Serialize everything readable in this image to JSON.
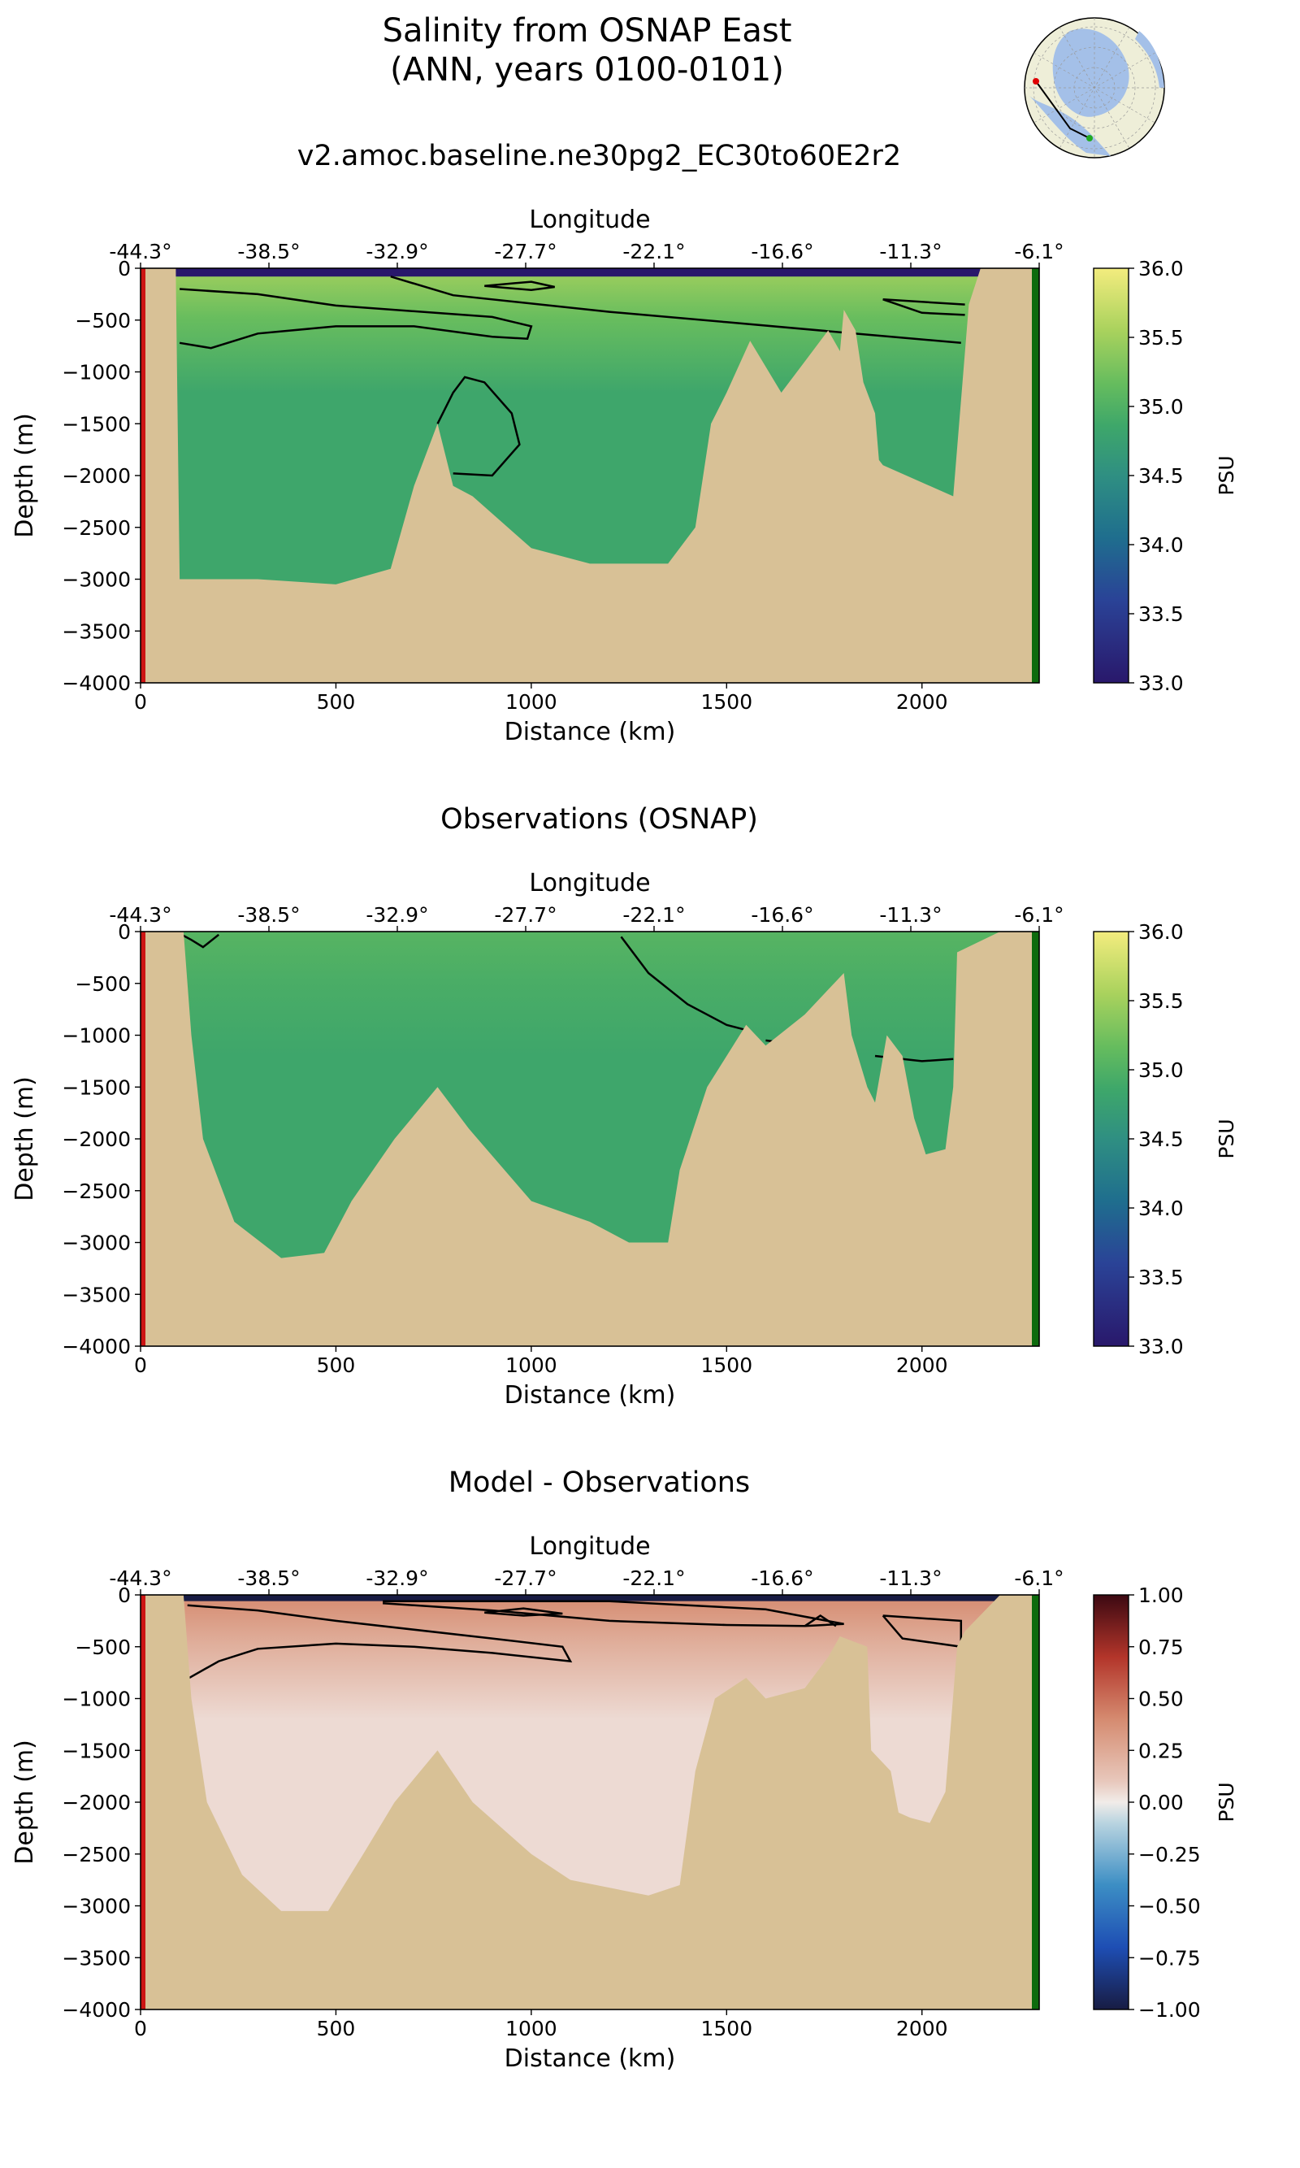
{
  "figure": {
    "title_line1": "Salinity from OSNAP East",
    "title_line2": "(ANN, years 0100-0101)",
    "run_name": "v2.amoc.baseline.ne30pg2_EC30to60E2r2"
  },
  "inset_map": {
    "projection": "north-polar-stereographic",
    "section_start_marker_color": "#e00000",
    "section_end_marker_color": "#22aa22",
    "land_color": "#eeeed8",
    "ocean_color": "#a4c0e8"
  },
  "chart_data": [
    {
      "type": "heatmap",
      "title": "",
      "xlabel": "Distance (km)",
      "ylabel": "Depth (m)",
      "top_axis_label": "Longitude",
      "top_ticks": [
        "-44.3°",
        "-38.5°",
        "-32.9°",
        "-27.7°",
        "-22.1°",
        "-16.6°",
        "-11.3°",
        "-6.1°"
      ],
      "xticks": [
        0,
        500,
        1000,
        1500,
        2000
      ],
      "yticks": [
        0,
        -500,
        -1000,
        -1500,
        -2000,
        -2500,
        -3000,
        -3500,
        -4000
      ],
      "ytick_labels": [
        "0",
        "−500",
        "−1000",
        "−1500",
        "−2000",
        "−2500",
        "−3000",
        "−3500",
        "−4000"
      ],
      "xlim": [
        0,
        2300
      ],
      "ylim": [
        -4000,
        0
      ],
      "colorbar": {
        "label": "PSU",
        "range": [
          33.0,
          36.0
        ],
        "ticks": [
          "33.0",
          "33.5",
          "34.0",
          "34.5",
          "35.0",
          "35.5",
          "36.0"
        ],
        "colormap": "haline"
      },
      "bathymetry": [
        [
          0,
          0
        ],
        [
          90,
          0
        ],
        [
          100,
          -3000
        ],
        [
          300,
          -3000
        ],
        [
          500,
          -3050
        ],
        [
          640,
          -2900
        ],
        [
          700,
          -2100
        ],
        [
          760,
          -1500
        ],
        [
          800,
          -2100
        ],
        [
          850,
          -2200
        ],
        [
          1000,
          -2700
        ],
        [
          1150,
          -2850
        ],
        [
          1350,
          -2850
        ],
        [
          1420,
          -2500
        ],
        [
          1460,
          -1500
        ],
        [
          1500,
          -1200
        ],
        [
          1560,
          -700
        ],
        [
          1640,
          -1200
        ],
        [
          1700,
          -900
        ],
        [
          1760,
          -600
        ],
        [
          1790,
          -800
        ],
        [
          1800,
          -400
        ],
        [
          1830,
          -600
        ],
        [
          1850,
          -1100
        ],
        [
          1880,
          -1400
        ],
        [
          1890,
          -1850
        ],
        [
          1900,
          -1900
        ],
        [
          2080,
          -2200
        ],
        [
          2120,
          -350
        ],
        [
          2150,
          0
        ],
        [
          2300,
          0
        ]
      ],
      "surface_layer": [
        {
          "x": 90,
          "x2": 2290,
          "depth": -80,
          "value": 33.0
        }
      ],
      "interior_value": 34.85,
      "near_surface_value": 35.5,
      "contours": [
        {
          "level": 35.0,
          "points": [
            [
              100,
              -720
            ],
            [
              180,
              -770
            ],
            [
              300,
              -630
            ],
            [
              500,
              -560
            ],
            [
              700,
              -560
            ],
            [
              900,
              -660
            ],
            [
              990,
              -680
            ],
            [
              1000,
              -560
            ],
            [
              900,
              -470
            ],
            [
              500,
              -360
            ],
            [
              300,
              -250
            ],
            [
              100,
              -200
            ]
          ]
        },
        {
          "level": 35.5,
          "points": [
            [
              640,
              -80
            ],
            [
              800,
              -260
            ],
            [
              1200,
              -420
            ],
            [
              1500,
              -520
            ],
            [
              1800,
              -620
            ],
            [
              2100,
              -720
            ]
          ]
        },
        {
          "level": 35.6,
          "points": [
            [
              880,
              -170
            ],
            [
              1000,
              -210
            ],
            [
              1060,
              -180
            ],
            [
              1000,
              -130
            ],
            [
              880,
              -170
            ]
          ]
        },
        {
          "level": 35.0,
          "points": [
            [
              760,
              -1500
            ],
            [
              800,
              -1200
            ],
            [
              830,
              -1050
            ],
            [
              880,
              -1100
            ],
            [
              950,
              -1400
            ],
            [
              970,
              -1700
            ],
            [
              900,
              -2000
            ],
            [
              800,
              -1980
            ]
          ]
        },
        {
          "level": 35.0,
          "points": [
            [
              2110,
              -450
            ],
            [
              2000,
              -430
            ],
            [
              1900,
              -300
            ],
            [
              2110,
              -350
            ]
          ]
        }
      ]
    },
    {
      "type": "heatmap",
      "title": "Observations (OSNAP)",
      "xlabel": "Distance (km)",
      "ylabel": "Depth (m)",
      "top_axis_label": "Longitude",
      "top_ticks": [
        "-44.3°",
        "-38.5°",
        "-32.9°",
        "-27.7°",
        "-22.1°",
        "-16.6°",
        "-11.3°",
        "-6.1°"
      ],
      "xticks": [
        0,
        500,
        1000,
        1500,
        2000
      ],
      "yticks": [
        0,
        -500,
        -1000,
        -1500,
        -2000,
        -2500,
        -3000,
        -3500,
        -4000
      ],
      "ytick_labels": [
        "0",
        "−500",
        "−1000",
        "−1500",
        "−2000",
        "−2500",
        "−3000",
        "−3500",
        "−4000"
      ],
      "xlim": [
        0,
        2300
      ],
      "ylim": [
        -4000,
        0
      ],
      "colorbar": {
        "label": "PSU",
        "range": [
          33.0,
          36.0
        ],
        "ticks": [
          "33.0",
          "33.5",
          "34.0",
          "34.5",
          "35.0",
          "35.5",
          "36.0"
        ],
        "colormap": "haline"
      },
      "bathymetry": [
        [
          0,
          0
        ],
        [
          110,
          0
        ],
        [
          130,
          -1000
        ],
        [
          160,
          -2000
        ],
        [
          240,
          -2800
        ],
        [
          360,
          -3150
        ],
        [
          470,
          -3100
        ],
        [
          540,
          -2600
        ],
        [
          650,
          -2000
        ],
        [
          760,
          -1500
        ],
        [
          840,
          -1900
        ],
        [
          1000,
          -2600
        ],
        [
          1150,
          -2800
        ],
        [
          1250,
          -3000
        ],
        [
          1350,
          -3000
        ],
        [
          1380,
          -2300
        ],
        [
          1450,
          -1500
        ],
        [
          1550,
          -900
        ],
        [
          1600,
          -1100
        ],
        [
          1700,
          -800
        ],
        [
          1750,
          -600
        ],
        [
          1800,
          -400
        ],
        [
          1820,
          -1000
        ],
        [
          1860,
          -1500
        ],
        [
          1880,
          -1650
        ],
        [
          1910,
          -1000
        ],
        [
          1950,
          -1200
        ],
        [
          1980,
          -1800
        ],
        [
          2010,
          -2150
        ],
        [
          2060,
          -2100
        ],
        [
          2080,
          -1500
        ],
        [
          2090,
          -200
        ],
        [
          2200,
          0
        ],
        [
          2300,
          0
        ]
      ],
      "surface_layer": [],
      "interior_value": 34.85,
      "near_surface_value": 35.05,
      "contours": [
        {
          "level": 35.0,
          "points": [
            [
              1230,
              -50
            ],
            [
              1300,
              -400
            ],
            [
              1400,
              -700
            ],
            [
              1500,
              -900
            ],
            [
              1550,
              -950
            ]
          ]
        },
        {
          "level": 35.0,
          "points": [
            [
              1600,
              -1050
            ],
            [
              1700,
              -1100
            ]
          ]
        },
        {
          "level": 35.0,
          "points": [
            [
              1880,
              -1200
            ],
            [
              2000,
              -1250
            ],
            [
              2080,
              -1230
            ]
          ]
        },
        {
          "level": 34.0,
          "points": [
            [
              100,
              -20
            ],
            [
              130,
              -80
            ],
            [
              160,
              -150
            ],
            [
              200,
              -30
            ]
          ]
        }
      ]
    },
    {
      "type": "heatmap",
      "title": "Model - Observations",
      "xlabel": "Distance (km)",
      "ylabel": "Depth (m)",
      "top_axis_label": "Longitude",
      "top_ticks": [
        "-44.3°",
        "-38.5°",
        "-32.9°",
        "-27.7°",
        "-22.1°",
        "-16.6°",
        "-11.3°",
        "-6.1°"
      ],
      "xticks": [
        0,
        500,
        1000,
        1500,
        2000
      ],
      "yticks": [
        0,
        -500,
        -1000,
        -1500,
        -2000,
        -2500,
        -3000,
        -3500,
        -4000
      ],
      "ytick_labels": [
        "0",
        "−500",
        "−1000",
        "−1500",
        "−2000",
        "−2500",
        "−3000",
        "−3500",
        "−4000"
      ],
      "xlim": [
        0,
        2300
      ],
      "ylim": [
        -4000,
        0
      ],
      "colorbar": {
        "label": "PSU",
        "range": [
          -1.0,
          1.0
        ],
        "ticks": [
          "−1.00",
          "−0.75",
          "−0.50",
          "−0.25",
          "0.00",
          "0.25",
          "0.50",
          "0.75",
          "1.00"
        ],
        "colormap": "balance"
      },
      "bathymetry": [
        [
          0,
          0
        ],
        [
          110,
          0
        ],
        [
          130,
          -1000
        ],
        [
          170,
          -2000
        ],
        [
          260,
          -2700
        ],
        [
          360,
          -3050
        ],
        [
          480,
          -3050
        ],
        [
          570,
          -2500
        ],
        [
          650,
          -2000
        ],
        [
          760,
          -1500
        ],
        [
          850,
          -2000
        ],
        [
          1000,
          -2500
        ],
        [
          1100,
          -2750
        ],
        [
          1300,
          -2900
        ],
        [
          1380,
          -2800
        ],
        [
          1420,
          -1700
        ],
        [
          1470,
          -1000
        ],
        [
          1550,
          -800
        ],
        [
          1600,
          -1000
        ],
        [
          1700,
          -900
        ],
        [
          1760,
          -600
        ],
        [
          1790,
          -400
        ],
        [
          1860,
          -500
        ],
        [
          1870,
          -1500
        ],
        [
          1920,
          -1700
        ],
        [
          1940,
          -2100
        ],
        [
          1970,
          -2150
        ],
        [
          2020,
          -2200
        ],
        [
          2060,
          -1900
        ],
        [
          2090,
          -500
        ],
        [
          2110,
          -350
        ],
        [
          2200,
          0
        ],
        [
          2300,
          0
        ]
      ],
      "surface_layer": [
        {
          "x": 90,
          "x2": 2290,
          "depth": -60,
          "value": -1.0
        }
      ],
      "interior_value": 0.05,
      "near_surface_value": 0.4,
      "contours": [
        {
          "level": -0.25,
          "points": [
            [
              120,
              -810
            ],
            [
              200,
              -640
            ],
            [
              300,
              -520
            ],
            [
              500,
              -470
            ],
            [
              700,
              -500
            ],
            [
              900,
              -560
            ],
            [
              1100,
              -640
            ],
            [
              1080,
              -500
            ],
            [
              900,
              -420
            ],
            [
              500,
              -250
            ],
            [
              300,
              -150
            ],
            [
              120,
              -100
            ]
          ]
        },
        {
          "level": 0.5,
          "points": [
            [
              620,
              -80
            ],
            [
              900,
              -150
            ],
            [
              1200,
              -250
            ],
            [
              1500,
              -290
            ],
            [
              1700,
              -300
            ],
            [
              1800,
              -280
            ],
            [
              1600,
              -140
            ],
            [
              1200,
              -60
            ],
            [
              620,
              -60
            ]
          ]
        },
        {
          "level": 0.75,
          "points": [
            [
              880,
              -170
            ],
            [
              980,
              -200
            ],
            [
              1080,
              -180
            ],
            [
              980,
              -130
            ],
            [
              880,
              -170
            ]
          ]
        },
        {
          "level": 0.5,
          "points": [
            [
              1700,
              -300
            ],
            [
              1740,
              -200
            ],
            [
              1780,
              -300
            ]
          ]
        },
        {
          "level": 0.5,
          "points": [
            [
              1900,
              -200
            ],
            [
              1950,
              -420
            ],
            [
              2100,
              -500
            ],
            [
              2100,
              -250
            ],
            [
              1900,
              -200
            ]
          ]
        }
      ]
    }
  ]
}
